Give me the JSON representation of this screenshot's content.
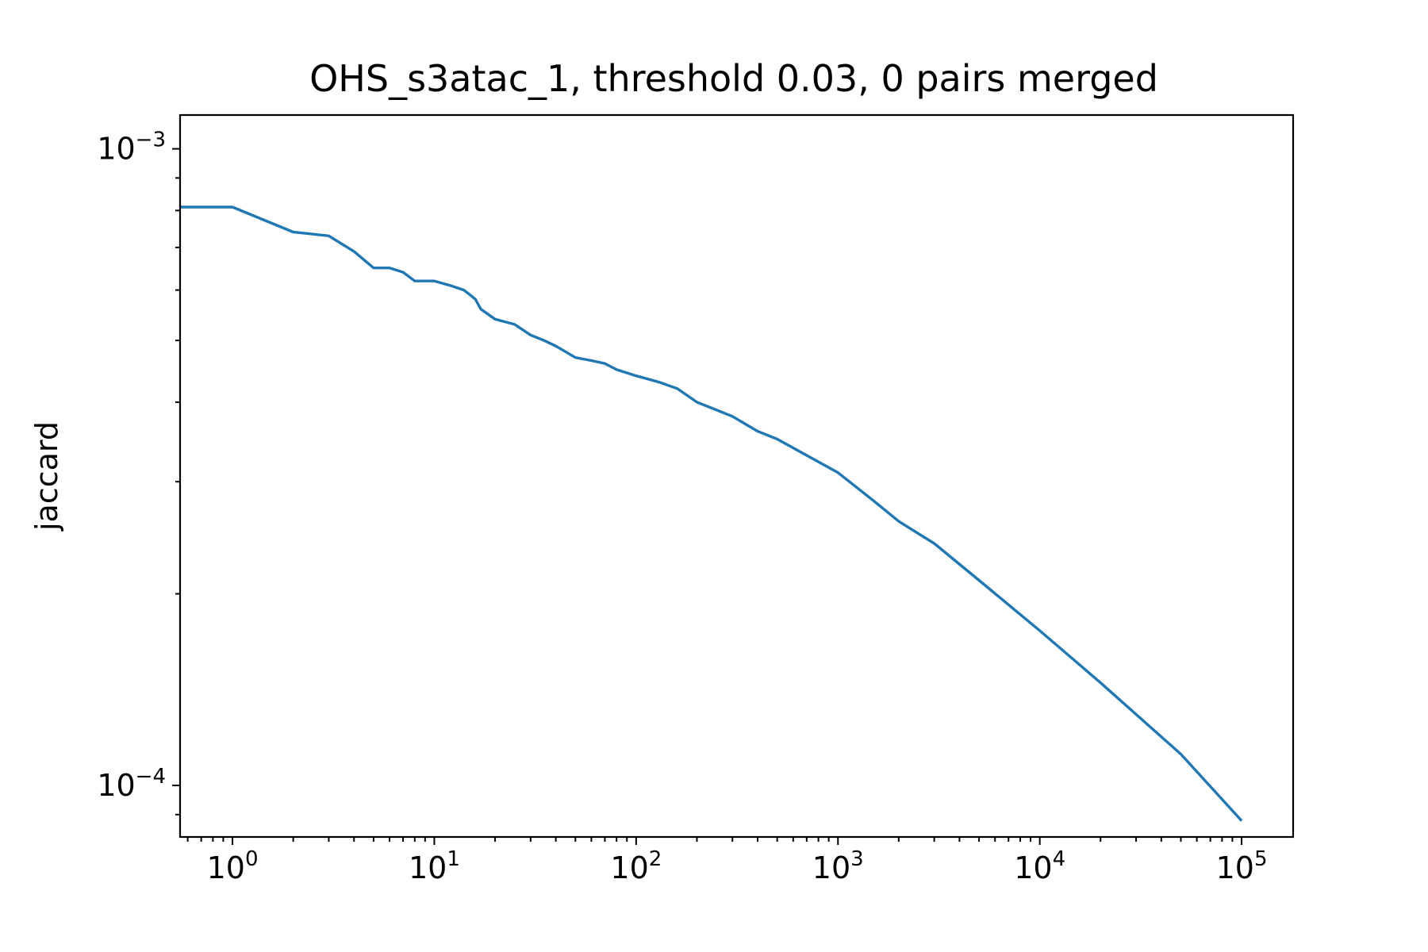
{
  "chart_data": {
    "type": "line",
    "title": "OHS_s3atac_1, threshold 0.03, 0 pairs merged",
    "xlabel": "",
    "ylabel": "jaccard",
    "xscale": "log",
    "yscale": "log",
    "xlim": [
      0.55,
      180000
    ],
    "ylim": [
      8.3e-05,
      0.00113
    ],
    "grid": false,
    "x_ticks": [
      {
        "base": "10",
        "exp": "0",
        "value": 1
      },
      {
        "base": "10",
        "exp": "1",
        "value": 10
      },
      {
        "base": "10",
        "exp": "2",
        "value": 100
      },
      {
        "base": "10",
        "exp": "3",
        "value": 1000
      },
      {
        "base": "10",
        "exp": "4",
        "value": 10000
      },
      {
        "base": "10",
        "exp": "5",
        "value": 100000
      }
    ],
    "y_ticks": [
      {
        "base": "10",
        "exp": "−3",
        "value": 0.001
      },
      {
        "base": "10",
        "exp": "−4",
        "value": 0.0001
      }
    ],
    "series": [
      {
        "color": "#1f77b4",
        "x": [
          0.55,
          1,
          2,
          3,
          4,
          5,
          6,
          7,
          8,
          10,
          12,
          14,
          15,
          16,
          17,
          20,
          25,
          30,
          35,
          40,
          50,
          60,
          70,
          80,
          100,
          130,
          160,
          200,
          300,
          400,
          500,
          700,
          1000,
          1500,
          2000,
          3000,
          5000,
          10000,
          20000,
          50000,
          100000
        ],
        "y": [
          0.00081,
          0.00081,
          0.00074,
          0.00073,
          0.00069,
          0.00065,
          0.00065,
          0.00064,
          0.00062,
          0.00062,
          0.00061,
          0.0006,
          0.00059,
          0.00058,
          0.00056,
          0.00054,
          0.00053,
          0.00051,
          0.0005,
          0.00049,
          0.00047,
          0.000465,
          0.00046,
          0.00045,
          0.00044,
          0.00043,
          0.00042,
          0.0004,
          0.00038,
          0.00036,
          0.00035,
          0.00033,
          0.00031,
          0.00028,
          0.00026,
          0.00024,
          0.00021,
          0.000175,
          0.000145,
          0.000112,
          8.8e-05
        ]
      }
    ]
  }
}
